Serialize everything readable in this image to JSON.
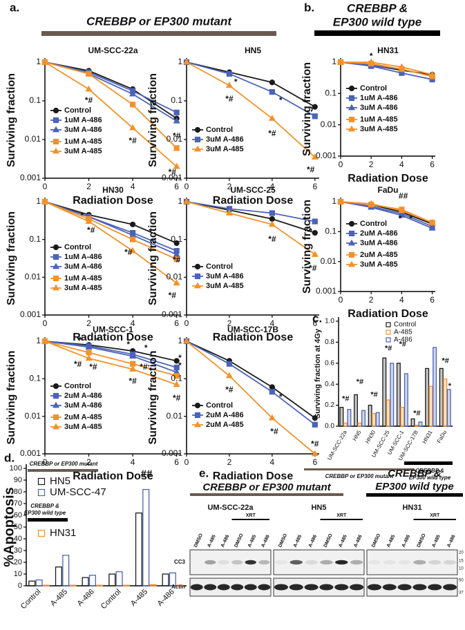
{
  "panel_labels": [
    "a.",
    "b.",
    "c.",
    "d.",
    "e."
  ],
  "headers": {
    "a": "CREBBP or EP300 mutant",
    "b": [
      "CREBBP &",
      "EP300 wild type"
    ]
  },
  "chart_data": [
    {
      "type": "line",
      "title": "UM-SCC-22a",
      "x_label": "Radiation Dose",
      "y_label": "Surviving fraction",
      "log_y": true,
      "grid": false,
      "legend": "lower left",
      "x": [
        0,
        2,
        4,
        6
      ],
      "xlim": [
        0,
        6.2
      ],
      "xticks": [
        0,
        2,
        4,
        6
      ],
      "ylim": [
        0.001,
        1
      ],
      "yticks": [
        0.001,
        0.01,
        0.1,
        1
      ],
      "series": [
        {
          "name": "Control",
          "color": "#1a1a1a",
          "marker": "circle",
          "values": [
            1,
            0.6,
            0.2,
            0.035
          ]
        },
        {
          "name": "1uM A-486",
          "color": "#4b63b8",
          "marker": "square",
          "values": [
            1,
            0.55,
            0.18,
            0.05
          ]
        },
        {
          "name": "3uM A-486",
          "color": "#4b63b8",
          "marker": "triangle",
          "values": [
            1,
            0.5,
            0.15,
            0.03
          ]
        },
        {
          "name": "1uM A-485",
          "color": "#f4922a",
          "marker": "square",
          "values": [
            1,
            0.5,
            0.08,
            0.006
          ]
        },
        {
          "name": "3uM A-485",
          "color": "#f4922a",
          "marker": "triangle",
          "values": [
            1,
            0.2,
            0.02,
            0.002
          ]
        }
      ],
      "annotations": [
        {
          "text": "*#",
          "x": 2,
          "y": 0.1
        },
        {
          "text": "*#",
          "x": 4,
          "y": 0.009
        },
        {
          "text": "*#",
          "x": 6,
          "y": 0.012
        },
        {
          "text": "*#",
          "x": 5.8,
          "y": 0.0014
        }
      ]
    },
    {
      "type": "line",
      "title": "HN5",
      "x_label": "Radiation Dose",
      "y_label": "Surviving fraction",
      "log_y": true,
      "grid": false,
      "legend": "lower left",
      "x": [
        0,
        2,
        4,
        6
      ],
      "xlim": [
        0,
        6.2
      ],
      "xticks": [
        0,
        2,
        4,
        6
      ],
      "ylim": [
        0.001,
        1
      ],
      "yticks": [
        0.001,
        0.01,
        0.1,
        1
      ],
      "series": [
        {
          "name": "Control",
          "color": "#1a1a1a",
          "marker": "circle",
          "values": [
            1,
            0.55,
            0.3,
            0.07
          ]
        },
        {
          "name": "3uM A-486",
          "color": "#4b63b8",
          "marker": "square",
          "values": [
            1,
            0.5,
            0.17,
            0.04
          ]
        },
        {
          "name": "3uM A-485",
          "color": "#f4922a",
          "marker": "triangle",
          "values": [
            1,
            0.25,
            0.035,
            0.0035
          ]
        }
      ],
      "annotations": [
        {
          "text": "*",
          "x": 2.3,
          "y": 0.3
        },
        {
          "text": "*",
          "x": 4.4,
          "y": 0.1
        },
        {
          "text": "*#",
          "x": 2,
          "y": 0.11
        },
        {
          "text": "*#",
          "x": 4,
          "y": 0.014
        },
        {
          "text": "*#",
          "x": 5.8,
          "y": 0.0016
        }
      ]
    },
    {
      "type": "line",
      "title": "HN30",
      "x_label": "Radiation Dose",
      "y_label": "Surviving fraction",
      "log_y": true,
      "grid": false,
      "legend": "lower left",
      "x": [
        0,
        2,
        4,
        6
      ],
      "xlim": [
        0,
        6.2
      ],
      "xticks": [
        0,
        2,
        4,
        6
      ],
      "ylim": [
        0.001,
        1
      ],
      "yticks": [
        0.001,
        0.01,
        0.1,
        1
      ],
      "series": [
        {
          "name": "Control",
          "color": "#1a1a1a",
          "marker": "circle",
          "values": [
            1,
            0.45,
            0.25,
            0.08
          ]
        },
        {
          "name": "1uM A-486",
          "color": "#4b63b8",
          "marker": "square",
          "values": [
            1,
            0.4,
            0.15,
            0.05
          ]
        },
        {
          "name": "3uM A-486",
          "color": "#4b63b8",
          "marker": "triangle",
          "values": [
            1,
            0.4,
            0.13,
            0.04
          ]
        },
        {
          "name": "1uM A-485",
          "color": "#f4922a",
          "marker": "square",
          "values": [
            1,
            0.35,
            0.1,
            0.03
          ]
        },
        {
          "name": "3uM A-485",
          "color": "#f4922a",
          "marker": "triangle",
          "values": [
            1,
            0.3,
            0.05,
            0.007
          ]
        }
      ],
      "annotations": [
        {
          "text": "*",
          "x": 1.7,
          "y": 0.42
        },
        {
          "text": "*#",
          "x": 2.1,
          "y": 0.17
        },
        {
          "text": "*#",
          "x": 3.8,
          "y": 0.045
        },
        {
          "text": "*#",
          "x": 6,
          "y": 0.028
        },
        {
          "text": "*#",
          "x": 5.8,
          "y": 0.0032
        }
      ]
    },
    {
      "type": "line",
      "title": "UM-SCC-25",
      "x_label": "Radiation Dose",
      "y_label": "Surviving fraction",
      "log_y": true,
      "grid": false,
      "legend": "lower left",
      "x": [
        0,
        2,
        4,
        6
      ],
      "xlim": [
        0,
        6.2
      ],
      "xticks": [
        0,
        2,
        4,
        6
      ],
      "ylim": [
        0.001,
        1
      ],
      "yticks": [
        0.001,
        0.01,
        0.1,
        1
      ],
      "series": [
        {
          "name": "Control",
          "color": "#1a1a1a",
          "marker": "circle",
          "values": [
            1,
            0.6,
            0.35,
            0.15
          ]
        },
        {
          "name": "3uM A-486",
          "color": "#4b63b8",
          "marker": "square",
          "values": [
            1,
            0.65,
            0.5,
            0.3
          ]
        },
        {
          "name": "3uM A-485",
          "color": "#f4922a",
          "marker": "triangle",
          "values": [
            1,
            0.5,
            0.25,
            0.04
          ]
        }
      ],
      "annotations": [
        {
          "text": "*#",
          "x": 4,
          "y": 0.1
        },
        {
          "text": "*",
          "x": 5.8,
          "y": 0.16
        },
        {
          "text": "*#",
          "x": 5.9,
          "y": 0.017
        }
      ]
    },
    {
      "type": "line",
      "title": "UM-SCC-1",
      "x_label": "Radiation Dose",
      "y_label": "Surviving fraction",
      "log_y": true,
      "grid": false,
      "legend": "lower left",
      "x": [
        0,
        2,
        4,
        6
      ],
      "xlim": [
        0,
        6.2
      ],
      "xticks": [
        0,
        2,
        4,
        6
      ],
      "ylim": [
        0.001,
        1
      ],
      "yticks": [
        0.001,
        0.01,
        0.1,
        1
      ],
      "series": [
        {
          "name": "Control",
          "color": "#1a1a1a",
          "marker": "circle",
          "values": [
            1,
            0.8,
            0.55,
            0.3
          ]
        },
        {
          "name": "2uM A-486",
          "color": "#4b63b8",
          "marker": "square",
          "values": [
            1,
            0.75,
            0.45,
            0.2
          ]
        },
        {
          "name": "3uM A-486",
          "color": "#4b63b8",
          "marker": "triangle",
          "values": [
            1,
            0.7,
            0.4,
            0.15
          ]
        },
        {
          "name": "2uM A-485",
          "color": "#f4922a",
          "marker": "square",
          "values": [
            1,
            0.5,
            0.25,
            0.12
          ]
        },
        {
          "name": "3uM A-485",
          "color": "#f4922a",
          "marker": "triangle",
          "values": [
            1,
            0.35,
            0.18,
            0.07
          ]
        }
      ],
      "annotations": [
        {
          "text": "*",
          "x": 1.6,
          "y": 1.05
        },
        {
          "text": "*",
          "x": 2.4,
          "y": 1.0
        },
        {
          "text": "*",
          "x": 3.8,
          "y": 0.8
        },
        {
          "text": "*",
          "x": 4.6,
          "y": 0.65
        },
        {
          "text": "*",
          "x": 6.15,
          "y": 0.35
        },
        {
          "text": "*",
          "x": 6.15,
          "y": 0.22
        },
        {
          "text": "*#",
          "x": 1.5,
          "y": 0.24
        },
        {
          "text": "*#",
          "x": 2.2,
          "y": 0.2
        },
        {
          "text": "*#",
          "x": 4,
          "y": 0.085
        },
        {
          "text": "*#",
          "x": 4.5,
          "y": 0.2
        },
        {
          "text": "*#",
          "x": 6,
          "y": 0.03
        }
      ]
    },
    {
      "type": "line",
      "title": "UM-SCC-17B",
      "x_label": "Radiation Dose",
      "y_label": "Surviving fraction",
      "log_y": true,
      "grid": false,
      "legend": "lower left",
      "x": [
        0,
        2,
        4,
        6
      ],
      "xlim": [
        0,
        6.2
      ],
      "xticks": [
        0,
        2,
        4,
        6
      ],
      "ylim": [
        0.001,
        1
      ],
      "yticks": [
        0.001,
        0.01,
        0.1,
        1
      ],
      "series": [
        {
          "name": "Control",
          "color": "#1a1a1a",
          "marker": "circle",
          "values": [
            1,
            0.3,
            0.06,
            0.009
          ]
        },
        {
          "name": "2uM A-486",
          "color": "#4b63b8",
          "marker": "square",
          "values": [
            1,
            0.25,
            0.045,
            0.006
          ]
        },
        {
          "name": "2uM A-485",
          "color": "#f4922a",
          "marker": "triangle",
          "values": [
            1,
            0.12,
            0.009,
            0.001
          ]
        }
      ],
      "annotations": [
        {
          "text": "*#",
          "x": 2,
          "y": 0.05
        },
        {
          "text": "*",
          "x": 4.4,
          "y": 0.032
        },
        {
          "text": "*#",
          "x": 4.1,
          "y": 0.0038
        },
        {
          "text": "*#",
          "x": 6,
          "y": 0.0018
        }
      ]
    },
    {
      "type": "line",
      "title": "HN31",
      "x_label": "Radiation Dose",
      "y_label": "Surviving fraction",
      "log_y": true,
      "grid": false,
      "legend": "lower left",
      "x": [
        0,
        2,
        4,
        6
      ],
      "xlim": [
        0,
        6.2
      ],
      "xticks": [
        0,
        2,
        4,
        6
      ],
      "ylim": [
        0.001,
        1
      ],
      "yticks": [
        0.001,
        0.01,
        0.1,
        1
      ],
      "series": [
        {
          "name": "Control",
          "color": "#1a1a1a",
          "marker": "circle",
          "values": [
            1,
            0.8,
            0.55,
            0.4
          ]
        },
        {
          "name": "1uM A-486",
          "color": "#4b63b8",
          "marker": "square",
          "values": [
            1,
            0.75,
            0.45,
            0.28
          ]
        },
        {
          "name": "3uM A-486",
          "color": "#4b63b8",
          "marker": "triangle",
          "values": [
            1,
            0.8,
            0.6,
            0.35
          ]
        },
        {
          "name": "1uM A-485",
          "color": "#f4922a",
          "marker": "square",
          "values": [
            1,
            0.9,
            0.6,
            0.35
          ]
        },
        {
          "name": "3uM A-485",
          "color": "#f4922a",
          "marker": "triangle",
          "values": [
            1,
            1,
            0.7,
            0.4
          ]
        }
      ],
      "annotations": [
        {
          "text": "*",
          "x": 2,
          "y": 1.5
        }
      ]
    },
    {
      "type": "line",
      "title": "FaDu",
      "x_label": "Radiation Dose",
      "y_label": "Surviving fraction",
      "log_y": true,
      "grid": false,
      "legend": "lower left",
      "x": [
        0,
        2,
        4,
        6
      ],
      "xlim": [
        0,
        6.2
      ],
      "xticks": [
        0,
        2,
        4,
        6
      ],
      "ylim": [
        0.001,
        1
      ],
      "yticks": [
        0.001,
        0.01,
        0.1,
        1
      ],
      "series": [
        {
          "name": "Control",
          "color": "#1a1a1a",
          "marker": "circle",
          "values": [
            1,
            0.8,
            0.45,
            0.18
          ]
        },
        {
          "name": "2uM A-486",
          "color": "#4b63b8",
          "marker": "square",
          "values": [
            1,
            0.7,
            0.4,
            0.15
          ]
        },
        {
          "name": "3uM A-486",
          "color": "#4b63b8",
          "marker": "triangle",
          "values": [
            1,
            0.65,
            0.35,
            0.13
          ]
        },
        {
          "name": "2uM A-485",
          "color": "#f4922a",
          "marker": "square",
          "values": [
            1,
            0.8,
            0.55,
            0.2
          ]
        },
        {
          "name": "3uM A-485",
          "color": "#f4922a",
          "marker": "triangle",
          "values": [
            1,
            0.85,
            0.5,
            0.2
          ]
        }
      ],
      "annotations": [
        {
          "text": "##",
          "x": 4.1,
          "y": 1.5
        },
        {
          "text": "*",
          "x": 3.9,
          "y": 0.26
        },
        {
          "text": "*",
          "x": 4.6,
          "y": 0.26
        }
      ]
    },
    {
      "type": "bar",
      "y_label": "Surviving fraction at 4Gy",
      "bar_style": "filled",
      "legend": "upper right",
      "categories": [
        "UM-SCC-22a",
        "HN5",
        "HN30",
        "UM-SCC-25",
        "UM-SCC-1",
        "UM-SCC-17B",
        "HN31",
        "FaDu"
      ],
      "ylim": [
        0,
        1
      ],
      "yticks": [
        {
          "value": 0,
          "label": "0.0"
        },
        0.2,
        0.4,
        0.6,
        0.8,
        {
          "value": 1,
          "label": "1.0"
        }
      ],
      "series": [
        {
          "name": "Control",
          "color": "#1a1a1a",
          "values": [
            0.18,
            0.3,
            0.2,
            0.65,
            0.6,
            0.07,
            0.55,
            0.55
          ]
        },
        {
          "name": "A-485",
          "color": "#f4922a",
          "values": [
            0.03,
            0.03,
            0.12,
            0.25,
            0.18,
            0.01,
            0.38,
            0.45
          ]
        },
        {
          "name": "A-486",
          "color": "#4b63b8",
          "values": [
            0.16,
            0.15,
            0.13,
            0.6,
            0.5,
            0.04,
            0.75,
            0.35
          ]
        }
      ],
      "groups": [
        [
          "CREBBP or EP300 mutant"
        ],
        [
          "CREBBP &",
          "EP300 wild type"
        ]
      ],
      "annotations": [
        {
          "text": "*#",
          "x": 0,
          "y": 0.26
        },
        {
          "text": "*#",
          "x": 1,
          "y": 0.42
        },
        {
          "text": "*#",
          "x": 2,
          "y": 0.3
        },
        {
          "text": "*#",
          "x": 3,
          "y": 0.74
        },
        {
          "text": "*#",
          "x": 4,
          "y": 0.78
        },
        {
          "text": "*#",
          "x": 5,
          "y": 0.12
        },
        {
          "text": "*#",
          "x": 7,
          "y": 0.62
        },
        {
          "text": "*",
          "x": 7.3,
          "y": 0.38
        }
      ]
    },
    {
      "type": "bar",
      "y_label": "%Apoptosis",
      "bar_style": "outline",
      "legend": "upper left",
      "categories": [
        "Control",
        "A-485",
        "A-486",
        "Control",
        "A-485",
        "A-486"
      ],
      "ylim": [
        0,
        100
      ],
      "yticks": [
        0,
        10,
        20,
        30,
        40,
        50,
        60,
        70,
        80,
        90,
        100
      ],
      "series": [
        {
          "name": "HN5",
          "color": "#1a1a1a",
          "values": [
            4,
            16,
            7,
            10,
            62,
            10
          ]
        },
        {
          "name": "UM-SCC-47",
          "color": "#4b63b8",
          "values": [
            5,
            26,
            9,
            12,
            82,
            11
          ]
        },
        {
          "name": "HN31",
          "color": "#f4922a",
          "values": [
            0.5,
            0.5,
            0.5,
            0.5,
            1,
            0.5
          ]
        }
      ],
      "legend_groups": [
        [
          "CREBBP or EP300 mutant"
        ],
        [
          "CREBBP &",
          "EP300 wild type"
        ]
      ],
      "annotations": [
        {
          "text": "##",
          "x": 4,
          "y": 95
        }
      ]
    }
  ],
  "blot": {
    "header_mutant": "CREBBP or EP300 mutant",
    "header_wt": [
      "CREBBP &",
      "EP300 wild type"
    ],
    "cell_lines": [
      "UM-SCC-22a",
      "HN5",
      "HN31"
    ],
    "lanes": [
      "DMSO",
      "A-485",
      "A-486",
      "DMSO",
      "A-485",
      "A-486"
    ],
    "xrt": "XRT",
    "rows": [
      "CC3",
      "Actin"
    ],
    "markers": [
      "20",
      "15",
      "10",
      "50",
      "37"
    ]
  }
}
